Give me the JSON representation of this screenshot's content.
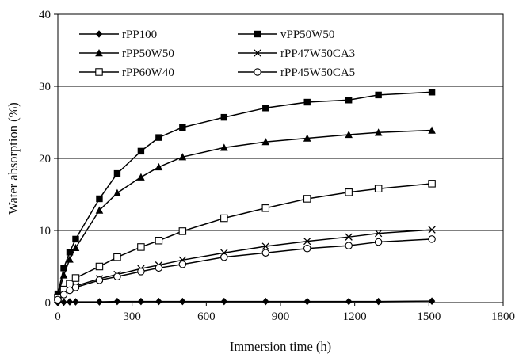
{
  "chart_data": {
    "type": "line",
    "title": "",
    "xlabel": "Immersion time (h)",
    "ylabel": "Water absorption (%)",
    "xlim": [
      0,
      1800
    ],
    "ylim": [
      0,
      40
    ],
    "x_ticks": [
      "0",
      "300",
      "600",
      "900",
      "1200",
      "1500",
      "1800"
    ],
    "y_ticks": [
      "0",
      "10",
      "20",
      "30",
      "40"
    ],
    "grid": "horizontal",
    "legend_position": "top-left, two columns",
    "series": [
      {
        "name": "rPP100",
        "marker": "diamond-filled",
        "x": [
          0,
          24,
          48,
          72,
          168,
          240,
          336,
          408,
          504,
          672,
          840,
          1008,
          1176,
          1296,
          1512
        ],
        "y": [
          0,
          0.05,
          0.1,
          0.1,
          0.1,
          0.15,
          0.15,
          0.15,
          0.15,
          0.15,
          0.15,
          0.15,
          0.15,
          0.15,
          0.2
        ]
      },
      {
        "name": "vPP50W50",
        "marker": "square-filled",
        "x": [
          0,
          24,
          48,
          72,
          168,
          240,
          336,
          408,
          504,
          672,
          840,
          1008,
          1176,
          1296,
          1512
        ],
        "y": [
          1.2,
          4.8,
          7.0,
          8.8,
          14.4,
          17.9,
          21.0,
          22.9,
          24.3,
          25.7,
          27.0,
          27.8,
          28.1,
          28.8,
          29.2
        ]
      },
      {
        "name": "rPP50W50",
        "marker": "triangle-filled",
        "x": [
          0,
          24,
          48,
          72,
          168,
          240,
          336,
          408,
          504,
          672,
          840,
          1008,
          1176,
          1296,
          1512
        ],
        "y": [
          1.0,
          3.8,
          6.0,
          7.6,
          12.8,
          15.2,
          17.4,
          18.8,
          20.2,
          21.5,
          22.3,
          22.8,
          23.3,
          23.6,
          23.9
        ]
      },
      {
        "name": "rPP47W50CA3",
        "marker": "x",
        "x": [
          0,
          24,
          48,
          72,
          168,
          240,
          336,
          408,
          504,
          672,
          840,
          1008,
          1176,
          1296,
          1512
        ],
        "y": [
          0.5,
          1.3,
          1.9,
          2.3,
          3.3,
          3.9,
          4.7,
          5.2,
          5.9,
          6.9,
          7.8,
          8.5,
          9.1,
          9.6,
          10.1
        ]
      },
      {
        "name": "rPP60W40",
        "marker": "square-open",
        "x": [
          0,
          24,
          48,
          72,
          168,
          240,
          336,
          408,
          504,
          672,
          840,
          1008,
          1176,
          1296,
          1512
        ],
        "y": [
          0.7,
          1.8,
          2.6,
          3.4,
          5.0,
          6.3,
          7.7,
          8.6,
          9.9,
          11.7,
          13.1,
          14.4,
          15.3,
          15.8,
          16.5
        ]
      },
      {
        "name": "rPP45W50CA5",
        "marker": "circle-open",
        "x": [
          0,
          24,
          48,
          72,
          168,
          240,
          336,
          408,
          504,
          672,
          840,
          1008,
          1176,
          1296,
          1512
        ],
        "y": [
          0.4,
          1.1,
          1.7,
          2.1,
          3.1,
          3.6,
          4.3,
          4.8,
          5.3,
          6.3,
          6.9,
          7.5,
          7.9,
          8.4,
          8.8
        ]
      }
    ]
  }
}
